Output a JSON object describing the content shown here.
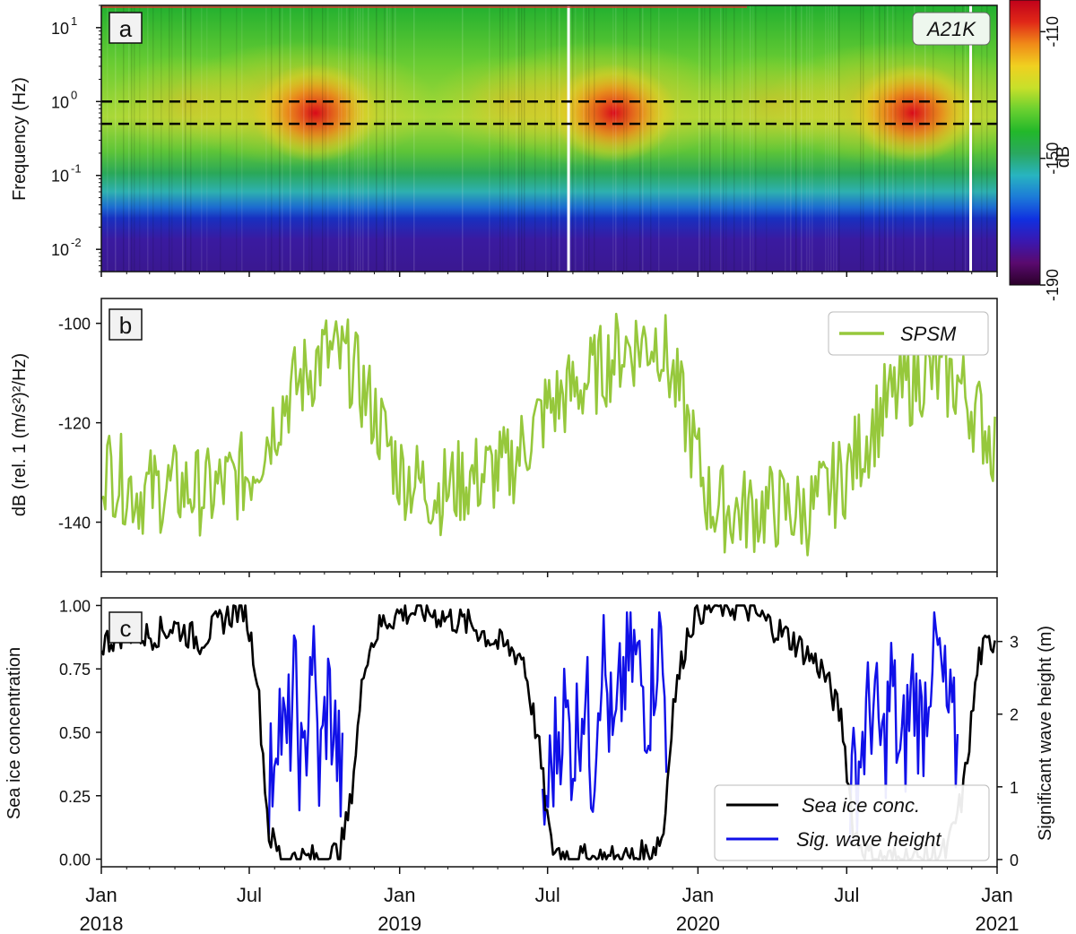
{
  "chart_data": [
    {
      "panel": "a",
      "type": "heatmap",
      "station_label": "A21K",
      "ylabel": "Frequency (Hz)",
      "y_scale": "log",
      "ylim": [
        0.005,
        20
      ],
      "y_ticks": [
        {
          "value": 10,
          "base": "10",
          "exp": "1"
        },
        {
          "value": 1,
          "base": "10",
          "exp": "0"
        },
        {
          "value": 0.1,
          "base": "10",
          "exp": "-1"
        },
        {
          "value": 0.01,
          "base": "10",
          "exp": "-2"
        }
      ],
      "band_lines_hz": [
        1.0,
        0.5
      ],
      "colorbar": {
        "label": "dB",
        "range": [
          -190,
          -100
        ],
        "ticks": [
          {
            "value": -110,
            "text": "-110"
          },
          {
            "value": -150,
            "text": "-150"
          },
          {
            "value": -190,
            "text": "-190"
          }
        ],
        "colors": [
          "#2a0029",
          "#5a0a6e",
          "#3a18b0",
          "#1030e0",
          "#1c7ad8",
          "#28b4c0",
          "#2aa860",
          "#22b82a",
          "#6ad030",
          "#c8e02a",
          "#f0d020",
          "#f08a18",
          "#e02818",
          "#c0001a"
        ]
      },
      "max_energy_months": [
        "2018-10",
        "2019-10",
        "2020-10"
      ],
      "gaps": [
        "2019-07-25",
        "2020-11-28"
      ]
    },
    {
      "panel": "b",
      "type": "line",
      "ylabel": "dB (rel. 1 (m/s²)²/Hz)",
      "ylim": [
        -150,
        -95
      ],
      "y_ticks": [
        -100,
        -120,
        -140
      ],
      "series": [
        {
          "name": "SPSM",
          "color": "#96c83c",
          "x": [
            "2018-01-01",
            "2018-02-15",
            "2018-04-01",
            "2018-05-15",
            "2018-07-01",
            "2018-08-15",
            "2018-10-01",
            "2018-11-01",
            "2018-12-01",
            "2019-01-01",
            "2019-02-15",
            "2019-04-01",
            "2019-05-15",
            "2019-07-01",
            "2019-08-15",
            "2019-10-01",
            "2019-11-15",
            "2019-12-15",
            "2020-01-15",
            "2020-02-15",
            "2020-04-01",
            "2020-05-15",
            "2020-07-01",
            "2020-08-15",
            "2020-10-01",
            "2020-11-15",
            "2020-12-31"
          ],
          "values": [
            -128,
            -134,
            -133,
            -134,
            -130,
            -115,
            -106,
            -108,
            -118,
            -130,
            -134,
            -131,
            -129,
            -117,
            -112,
            -105,
            -103,
            -118,
            -136,
            -138,
            -137,
            -138,
            -130,
            -117,
            -110,
            -112,
            -125
          ]
        }
      ]
    },
    {
      "panel": "c",
      "type": "line",
      "ylabel": "Sea ice concentration",
      "ylabel_right": "Significant wave height (m)",
      "ylim": [
        -0.03,
        1.03
      ],
      "ylim_right": [
        -0.1,
        3.6
      ],
      "y_ticks": [
        "0.00",
        "0.25",
        "0.50",
        "0.75",
        "1.00"
      ],
      "y_ticks_right": [
        "0",
        "1",
        "2",
        "3"
      ],
      "series": [
        {
          "name": "Sea ice conc.",
          "color": "#000000",
          "axis": "left",
          "x": [
            "2018-01-01",
            "2018-02-01",
            "2018-03-01",
            "2018-04-01",
            "2018-05-01",
            "2018-06-01",
            "2018-06-25",
            "2018-07-10",
            "2018-07-25",
            "2018-08-10",
            "2018-09-01",
            "2018-10-01",
            "2018-10-20",
            "2018-11-01",
            "2018-11-20",
            "2018-12-10",
            "2019-01-01",
            "2019-02-01",
            "2019-03-01",
            "2019-04-01",
            "2019-05-01",
            "2019-06-01",
            "2019-06-20",
            "2019-07-05",
            "2019-08-01",
            "2019-09-01",
            "2019-10-01",
            "2019-11-01",
            "2019-11-20",
            "2019-12-01",
            "2019-12-20",
            "2020-01-01",
            "2020-02-01",
            "2020-03-01",
            "2020-04-01",
            "2020-05-01",
            "2020-06-01",
            "2020-06-25",
            "2020-07-10",
            "2020-08-01",
            "2020-09-01",
            "2020-10-01",
            "2020-11-01",
            "2020-11-20",
            "2020-12-10",
            "2020-12-31"
          ],
          "values": [
            0.85,
            0.9,
            0.88,
            0.92,
            0.86,
            0.95,
            1.0,
            0.75,
            0.1,
            0.0,
            0.0,
            0.0,
            0.03,
            0.2,
            0.8,
            0.93,
            0.97,
            0.98,
            0.95,
            0.92,
            0.85,
            0.8,
            0.45,
            0.05,
            0.0,
            0.0,
            0.0,
            0.02,
            0.1,
            0.6,
            0.9,
            0.98,
            1.0,
            0.99,
            0.92,
            0.85,
            0.75,
            0.55,
            0.1,
            0.0,
            0.0,
            0.0,
            0.03,
            0.25,
            0.8,
            0.88
          ]
        },
        {
          "name": "Sig. wave height",
          "color": "#1010e8",
          "axis": "right",
          "x": [
            "2018-07-25",
            "2018-08-05",
            "2018-08-15",
            "2018-08-25",
            "2018-09-05",
            "2018-09-15",
            "2018-09-25",
            "2018-10-05",
            "2018-10-15",
            "2018-10-25",
            "2019-06-25",
            "2019-07-05",
            "2019-07-20",
            "2019-08-01",
            "2019-08-15",
            "2019-08-25",
            "2019-09-05",
            "2019-09-20",
            "2019-10-01",
            "2019-10-15",
            "2019-11-01",
            "2019-11-15",
            "2019-11-25",
            "2020-07-05",
            "2020-07-20",
            "2020-08-01",
            "2020-08-15",
            "2020-08-25",
            "2020-09-05",
            "2020-09-20",
            "2020-10-01",
            "2020-10-15",
            "2020-11-01",
            "2020-11-15"
          ],
          "values": [
            0.8,
            2.2,
            1.4,
            2.4,
            0.9,
            3.1,
            1.1,
            2.3,
            1.6,
            0.8,
            0.5,
            1.2,
            2.1,
            1.5,
            2.4,
            1.2,
            3.0,
            1.4,
            2.5,
            2.8,
            2.1,
            3.2,
            1.6,
            0.8,
            1.6,
            2.2,
            1.4,
            2.5,
            1.2,
            2.4,
            1.8,
            3.1,
            2.0,
            1.4
          ]
        }
      ]
    }
  ],
  "x_axis": {
    "ticks": [
      {
        "date": "2018-01-01",
        "month": "Jan",
        "year": "2018"
      },
      {
        "date": "2018-07-01",
        "month": "Jul",
        "year": ""
      },
      {
        "date": "2019-01-01",
        "month": "Jan",
        "year": "2019"
      },
      {
        "date": "2019-07-01",
        "month": "Jul",
        "year": ""
      },
      {
        "date": "2020-01-01",
        "month": "Jan",
        "year": "2020"
      },
      {
        "date": "2020-07-01",
        "month": "Jul",
        "year": ""
      },
      {
        "date": "2021-01-01",
        "month": "Jan",
        "year": "2021"
      }
    ]
  }
}
